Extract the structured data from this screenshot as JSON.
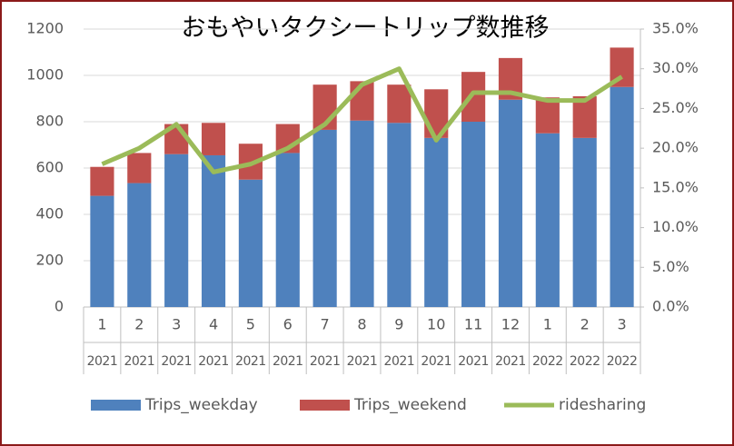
{
  "chart_data": {
    "type": "bar",
    "title": "おもやいタクシートリップ数推移",
    "categories": [
      "1",
      "2",
      "3",
      "4",
      "5",
      "6",
      "7",
      "8",
      "9",
      "10",
      "11",
      "12",
      "1",
      "2",
      "3"
    ],
    "years": [
      "2021",
      "2021",
      "2021",
      "2021",
      "2021",
      "2021",
      "2021",
      "2021",
      "2021",
      "2021",
      "2021",
      "2021",
      "2022",
      "2022",
      "2022"
    ],
    "stacked": true,
    "series": [
      {
        "name": "Trips_weekday",
        "color": "#4f81bd",
        "type": "bar",
        "values": [
          480,
          535,
          660,
          655,
          550,
          665,
          765,
          805,
          795,
          730,
          800,
          895,
          750,
          730,
          950
        ]
      },
      {
        "name": "Trips_weekend",
        "color": "#c0504d",
        "type": "bar",
        "values": [
          125,
          130,
          130,
          140,
          155,
          125,
          195,
          170,
          165,
          210,
          215,
          180,
          155,
          180,
          170
        ]
      },
      {
        "name": "ridesharing",
        "color": "#9bbb59",
        "type": "line",
        "axis": "y2",
        "values": [
          18,
          20,
          23,
          17,
          18,
          20,
          23,
          28,
          30,
          21,
          27,
          27,
          26,
          26,
          29
        ]
      }
    ],
    "ylim": [
      0,
      1200
    ],
    "yticks": [
      0,
      200,
      400,
      600,
      800,
      1000,
      1200
    ],
    "y2lim": [
      0,
      35
    ],
    "y2ticks": [
      {
        "value": 0,
        "label": "0.0%"
      },
      {
        "value": 5,
        "label": "5.0%"
      },
      {
        "value": 10,
        "label": "10.0%"
      },
      {
        "value": 15,
        "label": "15.0%"
      },
      {
        "value": 20,
        "label": "20.0%"
      },
      {
        "value": 25,
        "label": "25.0%"
      },
      {
        "value": 30,
        "label": "30.0%"
      },
      {
        "value": 35,
        "label": "35.0%"
      }
    ],
    "legend": "bottom"
  }
}
